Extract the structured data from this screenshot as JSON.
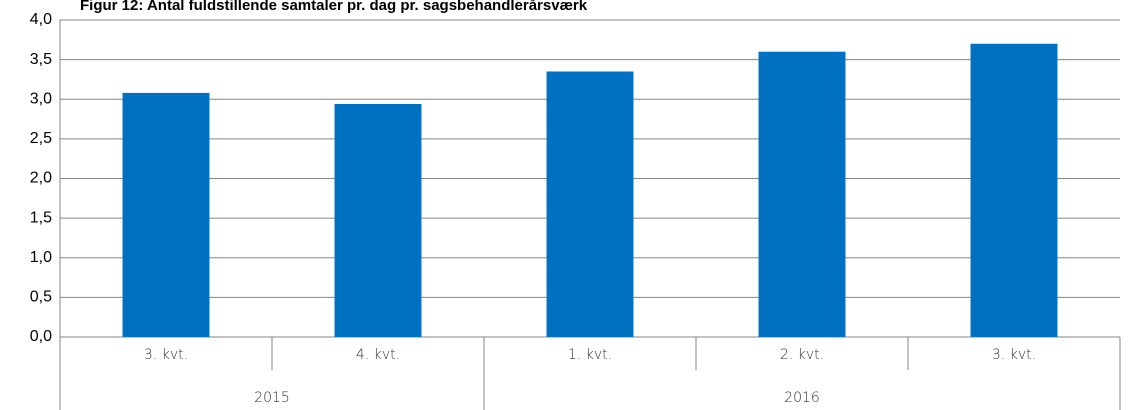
{
  "chart_data": {
    "type": "bar",
    "title": "Figur 12: Antal fuldstillende samtaler pr. dag pr. sagsbehandlerårsværk",
    "categories": [
      "3. kvt.",
      "4. kvt.",
      "1. kvt.",
      "2. kvt.",
      "3. kvt."
    ],
    "groups": [
      {
        "label": "2015",
        "count": 2
      },
      {
        "label": "2016",
        "count": 3
      }
    ],
    "values": [
      3.08,
      2.94,
      3.35,
      3.6,
      3.7
    ],
    "color": "#0070c0",
    "ylim": [
      0,
      4
    ],
    "yticks": [
      {
        "value": 0,
        "label": "0,0"
      },
      {
        "value": 0.5,
        "label": "0,5"
      },
      {
        "value": 1,
        "label": "1,0"
      },
      {
        "value": 1.5,
        "label": "1,5"
      },
      {
        "value": 2,
        "label": "2,0"
      },
      {
        "value": 2.5,
        "label": "2,5"
      },
      {
        "value": 3,
        "label": "3,0"
      },
      {
        "value": 3.5,
        "label": "3,5"
      },
      {
        "value": 4,
        "label": "4,0"
      }
    ],
    "grid": true
  }
}
